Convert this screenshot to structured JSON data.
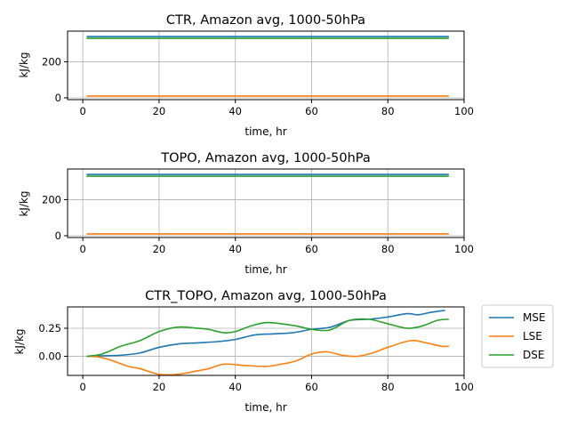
{
  "colors": {
    "MSE": "#1f77b4",
    "LSE": "#ff7f0e",
    "DSE": "#2ca02c",
    "grid": "#b0b0b0"
  },
  "legend": [
    "MSE",
    "LSE",
    "DSE"
  ],
  "chart_data": [
    {
      "type": "line",
      "title": "CTR, Amazon avg, 1000-50hPa",
      "xlabel": "time, hr",
      "ylabel": "kJ/kg",
      "xlim": [
        -4,
        100
      ],
      "ylim": [
        -10,
        370
      ],
      "xticks": [
        0,
        20,
        40,
        60,
        80,
        100
      ],
      "yticks": [
        0,
        200
      ],
      "grid": true,
      "series": [
        {
          "name": "MSE",
          "x": [
            1,
            96
          ],
          "values": [
            340,
            340
          ]
        },
        {
          "name": "LSE",
          "x": [
            1,
            96
          ],
          "values": [
            10,
            10
          ]
        },
        {
          "name": "DSE",
          "x": [
            1,
            96
          ],
          "values": [
            330,
            330
          ]
        }
      ]
    },
    {
      "type": "line",
      "title": "TOPO, Amazon avg, 1000-50hPa",
      "xlabel": "time, hr",
      "ylabel": "kJ/kg",
      "xlim": [
        -4,
        100
      ],
      "ylim": [
        -10,
        370
      ],
      "xticks": [
        0,
        20,
        40,
        60,
        80,
        100
      ],
      "yticks": [
        0,
        200
      ],
      "grid": true,
      "series": [
        {
          "name": "MSE",
          "x": [
            1,
            96
          ],
          "values": [
            340,
            340
          ]
        },
        {
          "name": "LSE",
          "x": [
            1,
            96
          ],
          "values": [
            10,
            10
          ]
        },
        {
          "name": "DSE",
          "x": [
            1,
            96
          ],
          "values": [
            330,
            330
          ]
        }
      ]
    },
    {
      "type": "line",
      "title": "CTR_TOPO, Amazon avg, 1000-50hPa",
      "xlabel": "time, hr",
      "ylabel": "kJ/kg",
      "xlim": [
        -4,
        100
      ],
      "ylim": [
        -0.17,
        0.44
      ],
      "xticks": [
        0,
        20,
        40,
        60,
        80,
        100
      ],
      "yticks": [
        0.0,
        0.25
      ],
      "ytick_labels": [
        "0.00",
        "0.25"
      ],
      "grid": true,
      "legend_position": "outside-right",
      "series": [
        {
          "name": "MSE",
          "x": [
            1,
            5,
            10,
            15,
            20,
            25,
            30,
            35,
            40,
            45,
            50,
            55,
            60,
            65,
            70,
            75,
            80,
            85,
            88,
            91,
            95
          ],
          "values": [
            0.0,
            0.005,
            0.01,
            0.03,
            0.08,
            0.11,
            0.12,
            0.13,
            0.15,
            0.19,
            0.2,
            0.21,
            0.24,
            0.26,
            0.32,
            0.33,
            0.35,
            0.38,
            0.37,
            0.39,
            0.41
          ]
        },
        {
          "name": "LSE",
          "x": [
            1,
            4,
            7,
            12,
            15,
            20,
            25,
            30,
            33,
            37,
            42,
            48,
            52,
            56,
            60,
            64,
            68,
            72,
            76,
            80,
            86,
            90,
            94,
            96
          ],
          "values": [
            0.0,
            -0.005,
            -0.03,
            -0.09,
            -0.11,
            -0.16,
            -0.16,
            -0.13,
            -0.11,
            -0.07,
            -0.08,
            -0.09,
            -0.07,
            -0.04,
            0.02,
            0.04,
            0.01,
            0.0,
            0.03,
            0.08,
            0.14,
            0.12,
            0.09,
            0.09
          ]
        },
        {
          "name": "DSE",
          "x": [
            1,
            5,
            10,
            15,
            20,
            25,
            30,
            33,
            37,
            40,
            44,
            48,
            52,
            56,
            60,
            64,
            66,
            70,
            75,
            80,
            85,
            89,
            93,
            96
          ],
          "values": [
            0.0,
            0.02,
            0.09,
            0.14,
            0.22,
            0.26,
            0.25,
            0.24,
            0.21,
            0.22,
            0.27,
            0.3,
            0.29,
            0.27,
            0.24,
            0.23,
            0.25,
            0.32,
            0.33,
            0.29,
            0.25,
            0.27,
            0.32,
            0.33
          ]
        }
      ]
    }
  ]
}
